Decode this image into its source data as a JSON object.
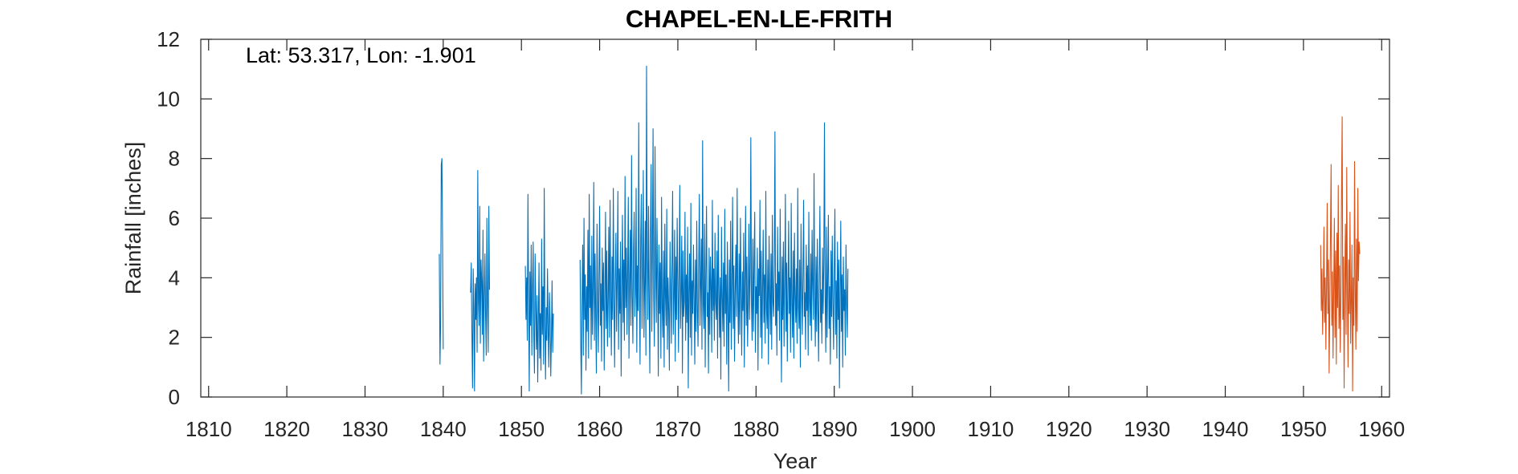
{
  "chart_data": {
    "type": "line",
    "title": "CHAPEL-EN-LE-FRITH",
    "xlabel": "Year",
    "ylabel": "Rainfall [inches]",
    "annotation": "Lat: 53.317, Lon: -1.901",
    "xlim": [
      1809,
      1961
    ],
    "ylim": [
      0,
      12
    ],
    "xticks": [
      1810,
      1820,
      1830,
      1840,
      1850,
      1860,
      1870,
      1880,
      1890,
      1900,
      1910,
      1920,
      1930,
      1940,
      1950,
      1960
    ],
    "yticks": [
      0,
      2,
      4,
      6,
      8,
      10,
      12
    ],
    "grid": false,
    "series": [
      {
        "color": "#0072BD",
        "segments": [
          {
            "start": 1839.5,
            "step": 0.0833333,
            "values": [
              4.8,
              1.1,
              2.5,
              7.8,
              8.0,
              5.2,
              1.6
            ]
          },
          {
            "start": 1843.5,
            "step": 0.0833333,
            "values": [
              3.5,
              4.5,
              2.1,
              0.3,
              4.3,
              3.0,
              0.2,
              3.8,
              2.6,
              4.0,
              1.5,
              7.6,
              3.2,
              2.4,
              6.4,
              1.8,
              4.6,
              3.9,
              2.1,
              5.6,
              1.2,
              3.3,
              4.8,
              2.7,
              1.4,
              6.0,
              3.1,
              1.5,
              6.4,
              3.6
            ]
          },
          {
            "start": 1850.5,
            "step": 0.0833333,
            "values": [
              4.4,
              2.6,
              4.0,
              1.9,
              6.8,
              3.3,
              0.2,
              4.2,
              2.4,
              5.1,
              1.4,
              3.6,
              5.2,
              2.0,
              0.8,
              4.8,
              3.0,
              1.6,
              3.4,
              0.5,
              2.6,
              4.5,
              1.3,
              2.8,
              0.9,
              5.3,
              2.1,
              3.7,
              1.1,
              7.0,
              2.4,
              0.6,
              3.0,
              1.9,
              4.3,
              2.2,
              1.0,
              3.5,
              2.6,
              0.7,
              2.0,
              3.9,
              1.5,
              2.8
            ]
          },
          {
            "start": 1857.5,
            "step": 0.0833333,
            "values": [
              4.6,
              1.8,
              0.1,
              3.3,
              5.1,
              1.4,
              6.0,
              2.6,
              4.1,
              0.9,
              3.7,
              2.2,
              5.6,
              1.3,
              6.8,
              3.0,
              4.4,
              1.6,
              5.4,
              2.1,
              3.6,
              7.2,
              1.9,
              4.8,
              2.7,
              0.8,
              5.8,
              3.2,
              1.5,
              4.2,
              6.4,
              2.4,
              3.8,
              1.2,
              5.0,
              2.9,
              4.5,
              0.9,
              3.4,
              6.2,
              2.3,
              4.9,
              1.7,
              3.1,
              5.7,
              2.0,
              6.6,
              3.5,
              1.4,
              4.7,
              2.6,
              7.0,
              3.3,
              1.0,
              4.0,
              5.5,
              2.2,
              3.9,
              6.9,
              1.6,
              4.3,
              2.8,
              5.2,
              0.7,
              3.6,
              6.1,
              2.5,
              4.6,
              1.9,
              7.4,
              3.0,
              5.0,
              2.1,
              4.2,
              6.7,
              1.3,
              3.8,
              5.6,
              2.4,
              8.1,
              3.4,
              1.8,
              4.9,
              6.2,
              2.7,
              3.5,
              7.0,
              1.5,
              4.4,
              2.9,
              9.2,
              3.6,
              1.1,
              5.3,
              6.8,
              2.3,
              4.1,
              7.6,
              2.0,
              3.7,
              5.9,
              1.4,
              11.1,
              4.6,
              2.6,
              6.4,
              3.2,
              0.8,
              5.5,
              7.8,
              2.2,
              4.8,
              9.0,
              3.3,
              1.7,
              8.4,
              4.3,
              2.5,
              6.0,
              3.9,
              0.7,
              5.1,
              2.8,
              4.5,
              1.3,
              6.7,
              3.0,
              2.0,
              4.9,
              1.0,
              5.8,
              3.4,
              2.4,
              6.3,
              1.6,
              4.0,
              2.9,
              0.9,
              5.2,
              3.7,
              1.8,
              4.4,
              6.9,
              2.1,
              3.3,
              5.6,
              1.2,
              4.7,
              2.6,
              6.0,
              3.8,
              1.5,
              4.2,
              7.1,
              2.3,
              3.5,
              5.4,
              0.8,
              4.9,
              2.7,
              3.2,
              6.2,
              1.9,
              4.1,
              2.5,
              5.7,
              0.3,
              3.6,
              4.8,
              2.0,
              6.5,
              1.4,
              3.9,
              2.8,
              5.1,
              3.3,
              1.1,
              4.6,
              2.2,
              5.9,
              3.0,
              1.7,
              4.4,
              6.8,
              2.4,
              3.7,
              5.3,
              1.6,
              8.6,
              3.1,
              2.3,
              5.8,
              1.0,
              4.2,
              6.4,
              2.7,
              3.5,
              0.8,
              5.0,
              2.1,
              4.7,
              3.8,
              1.5,
              6.6,
              2.9,
              4.3,
              1.9,
              5.5,
              3.2,
              2.6,
              4.9,
              1.3,
              6.1,
              3.6,
              2.0,
              4.0,
              0.6,
              5.7,
              3.4,
              2.2,
              4.5,
              1.7,
              6.3,
              2.8,
              4.1,
              1.1,
              5.2,
              3.0,
              0.2,
              4.6,
              2.5,
              5.9,
              1.6,
              3.8,
              6.7,
              2.3,
              4.4,
              1.2,
              3.5,
              5.1,
              2.7,
              7.0,
              3.3,
              1.8,
              4.8,
              2.1,
              6.0,
              3.6,
              1.4,
              4.2,
              2.9,
              5.5,
              1.0,
              3.9,
              6.4,
              2.4,
              4.7,
              1.7,
              3.2,
              5.8,
              2.6,
              4.0,
              8.7,
              3.1,
              1.9,
              5.3,
              2.2,
              4.5,
              6.2,
              1.5,
              3.7,
              2.8,
              5.0,
              0.9,
              4.3,
              3.4,
              6.6,
              2.0,
              4.9,
              1.3,
              3.6,
              5.6,
              2.5,
              4.1,
              1.8,
              6.9,
              3.0,
              2.3,
              4.6,
              1.1,
              5.4,
              3.5,
              2.1,
              4.8,
              1.6,
              6.1,
              3.2,
              2.7,
              4.4,
              8.9,
              2.4,
              3.8,
              1.4,
              5.7,
              2.9,
              4.2,
              1.9,
              6.3,
              3.3,
              0.5,
              4.7,
              2.6,
              5.2,
              1.7,
              3.9,
              6.8,
              2.2,
              4.5,
              1.2,
              3.6,
              5.9,
              2.8,
              4.0,
              1.5,
              6.5,
              3.1,
              2.0,
              4.9,
              1.3,
              5.5,
              3.4,
              2.5,
              4.3,
              1.8,
              7.0,
              3.0,
              2.3,
              4.6,
              1.0,
              5.8,
              3.7,
              2.1,
              4.1,
              6.6,
              2.7,
              3.5,
              1.6,
              5.1,
              2.9,
              4.4,
              1.4,
              6.2,
              3.2,
              2.4,
              4.8,
              1.9,
              5.6,
              3.8,
              2.6,
              7.5,
              3.3,
              1.7,
              4.7,
              2.2,
              5.3,
              3.0,
              1.2,
              4.2,
              6.4,
              2.5,
              3.6,
              1.8,
              5.0,
              2.8,
              4.5,
              9.2,
              3.4,
              1.5,
              5.7,
              2.0,
              4.0,
              6.1,
              2.3,
              3.7,
              1.1,
              4.9,
              2.7,
              5.4,
              3.1,
              1.6,
              4.3,
              6.3,
              2.1,
              3.9,
              1.3,
              5.2,
              2.6,
              4.6,
              0.3,
              3.5,
              5.9,
              2.2,
              4.1,
              1.0,
              4.7,
              2.9,
              3.6,
              1.4,
              5.1,
              3.2,
              2.0,
              4.3
            ]
          }
        ]
      },
      {
        "color": "#D95319",
        "segments": [
          {
            "start": 1952.2,
            "step": 0.0833333,
            "values": [
              5.1,
              2.9,
              4.3,
              2.1,
              3.4,
              5.7,
              2.5,
              4.0,
              1.6,
              3.8,
              6.5,
              2.8,
              4.6,
              0.8,
              3.1,
              5.3,
              7.8,
              2.4,
              4.2,
              1.3,
              3.6,
              6.0,
              2.0,
              4.9,
              1.1,
              5.5,
              3.0,
              7.1,
              2.3,
              4.4,
              1.5,
              3.3,
              6.8,
              9.4,
              2.6,
              4.7,
              0.3,
              3.9,
              5.8,
              2.1,
              7.7,
              3.5,
              1.0,
              4.6,
              2.8,
              6.2,
              1.8,
              3.2,
              5.1,
              0.2,
              4.0,
              2.4,
              7.9,
              3.7,
              1.6,
              5.3,
              2.2,
              7.0,
              3.9,
              5.2,
              4.8
            ]
          }
        ]
      }
    ]
  }
}
